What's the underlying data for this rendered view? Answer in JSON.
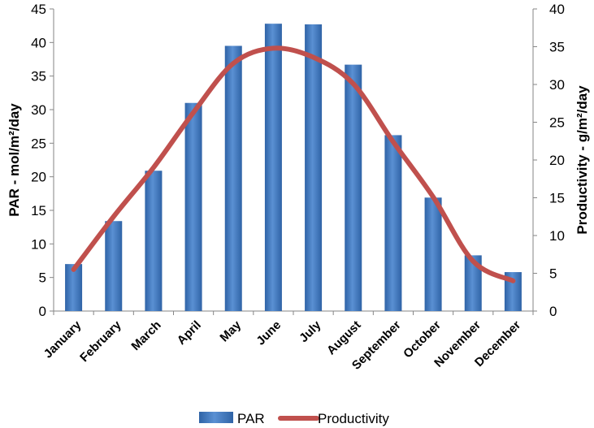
{
  "chart_data": {
    "type": "bar+line",
    "categories": [
      "January",
      "February",
      "March",
      "April",
      "May",
      "June",
      "July",
      "August",
      "September",
      "October",
      "November",
      "December"
    ],
    "series": [
      {
        "name": "PAR",
        "type": "bar",
        "axis": "left",
        "color": "#4a7fc1",
        "values": [
          7.0,
          13.4,
          20.9,
          31.0,
          39.5,
          42.8,
          42.7,
          36.7,
          26.2,
          16.9,
          8.3,
          5.8
        ]
      },
      {
        "name": "Productivity",
        "type": "line",
        "axis": "right",
        "color": "#c0504d",
        "values": [
          5.5,
          12.5,
          19.0,
          26.3,
          32.8,
          34.8,
          33.6,
          30.1,
          22.4,
          15.1,
          6.6,
          4.0
        ]
      }
    ],
    "y_left": {
      "label": "PAR - mol/m²/day",
      "ylim": [
        0,
        45
      ],
      "ticks": [
        0,
        5,
        10,
        15,
        20,
        25,
        30,
        35,
        40,
        45
      ]
    },
    "y_right": {
      "label": "Productivity - g/m²/day",
      "ylim": [
        0,
        40
      ],
      "ticks": [
        0,
        5,
        10,
        15,
        20,
        25,
        30,
        35,
        40
      ]
    },
    "legend": {
      "position": "bottom",
      "entries": [
        "PAR",
        "Productivity"
      ]
    },
    "grid": false
  }
}
